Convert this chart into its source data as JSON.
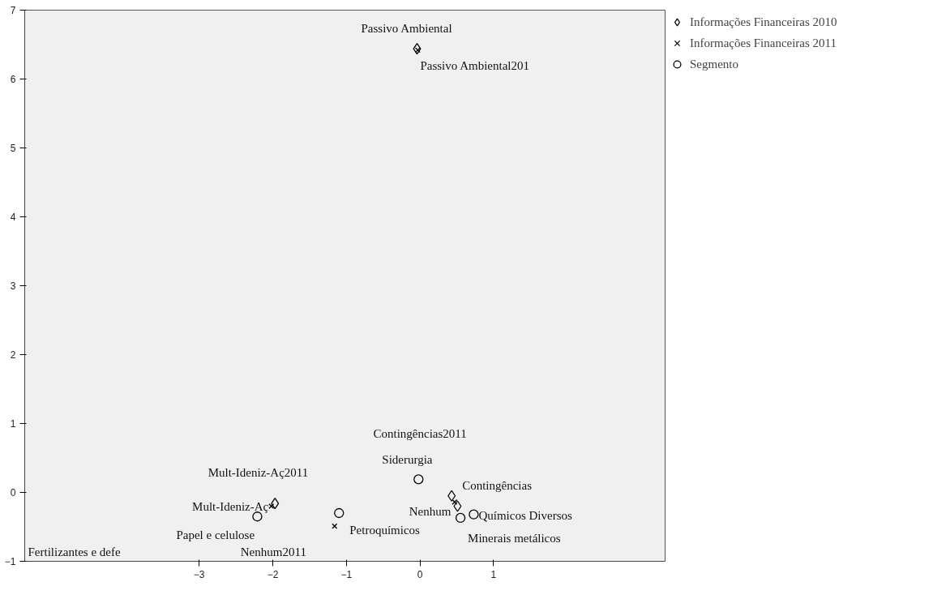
{
  "chart_data": {
    "type": "scatter",
    "xlim": [
      -5.37,
      3.33
    ],
    "ylim": [
      -1,
      7
    ],
    "xticks": [
      -3,
      -2,
      -1,
      0,
      1
    ],
    "yticks": [
      -1,
      0,
      1,
      2,
      3,
      4,
      5,
      6,
      7
    ],
    "grid": false,
    "legend": "top right",
    "series": [
      {
        "name": "Informações Financeiras 2010",
        "color": "#000000",
        "marker": "diamond",
        "x": [
          -0.04,
          -1.97,
          0.43,
          0.51
        ],
        "values": [
          6.44,
          -0.16,
          -0.05,
          -0.2
        ]
      },
      {
        "name": "Informações Financeiras 2011",
        "color": "#000000",
        "marker": "cross",
        "x": [
          -0.03,
          -2.02,
          0.47,
          -1.16
        ],
        "values": [
          6.42,
          -0.2,
          -0.14,
          -0.49
        ]
      },
      {
        "name": "Segmento",
        "color": "#000000",
        "marker": "circle",
        "x": [
          -0.02,
          -2.21,
          -1.1,
          0.55,
          0.73
        ],
        "values": [
          0.19,
          -0.35,
          -0.3,
          -0.37,
          -0.32
        ]
      }
    ],
    "annotations": [
      {
        "text": "Passivo Ambiental",
        "x": -0.04,
        "y": 6.44
      },
      {
        "text": "Passivo Ambiental201",
        "x": -0.03,
        "y": 6.42
      },
      {
        "text": "Mult-Ideniz-Aç2011",
        "x": -2.02,
        "y": -0.2
      },
      {
        "text": "Mult-Ideniz-Aç",
        "x": -1.97,
        "y": -0.16
      },
      {
        "text": "Papel e celulose",
        "x": -2.21,
        "y": -0.35
      },
      {
        "text": "Nenhum2011",
        "x": -1.16,
        "y": -0.49
      },
      "Fertilizantes e defe",
      {
        "text": "Petroquímicos",
        "x": -1.1,
        "y": -0.3
      },
      "Contingências2011",
      {
        "text": "Siderurgia",
        "x": -0.02,
        "y": 0.19
      },
      {
        "text": "Contingências",
        "x": 0.43,
        "y": -0.05
      },
      {
        "text": "Nenhum",
        "x": 0.51,
        "y": -0.2
      },
      {
        "text": "Químicos Diversos",
        "x": 0.73,
        "y": -0.32
      },
      {
        "text": "Minerais metálicos",
        "x": 0.55,
        "y": -0.37
      }
    ]
  }
}
